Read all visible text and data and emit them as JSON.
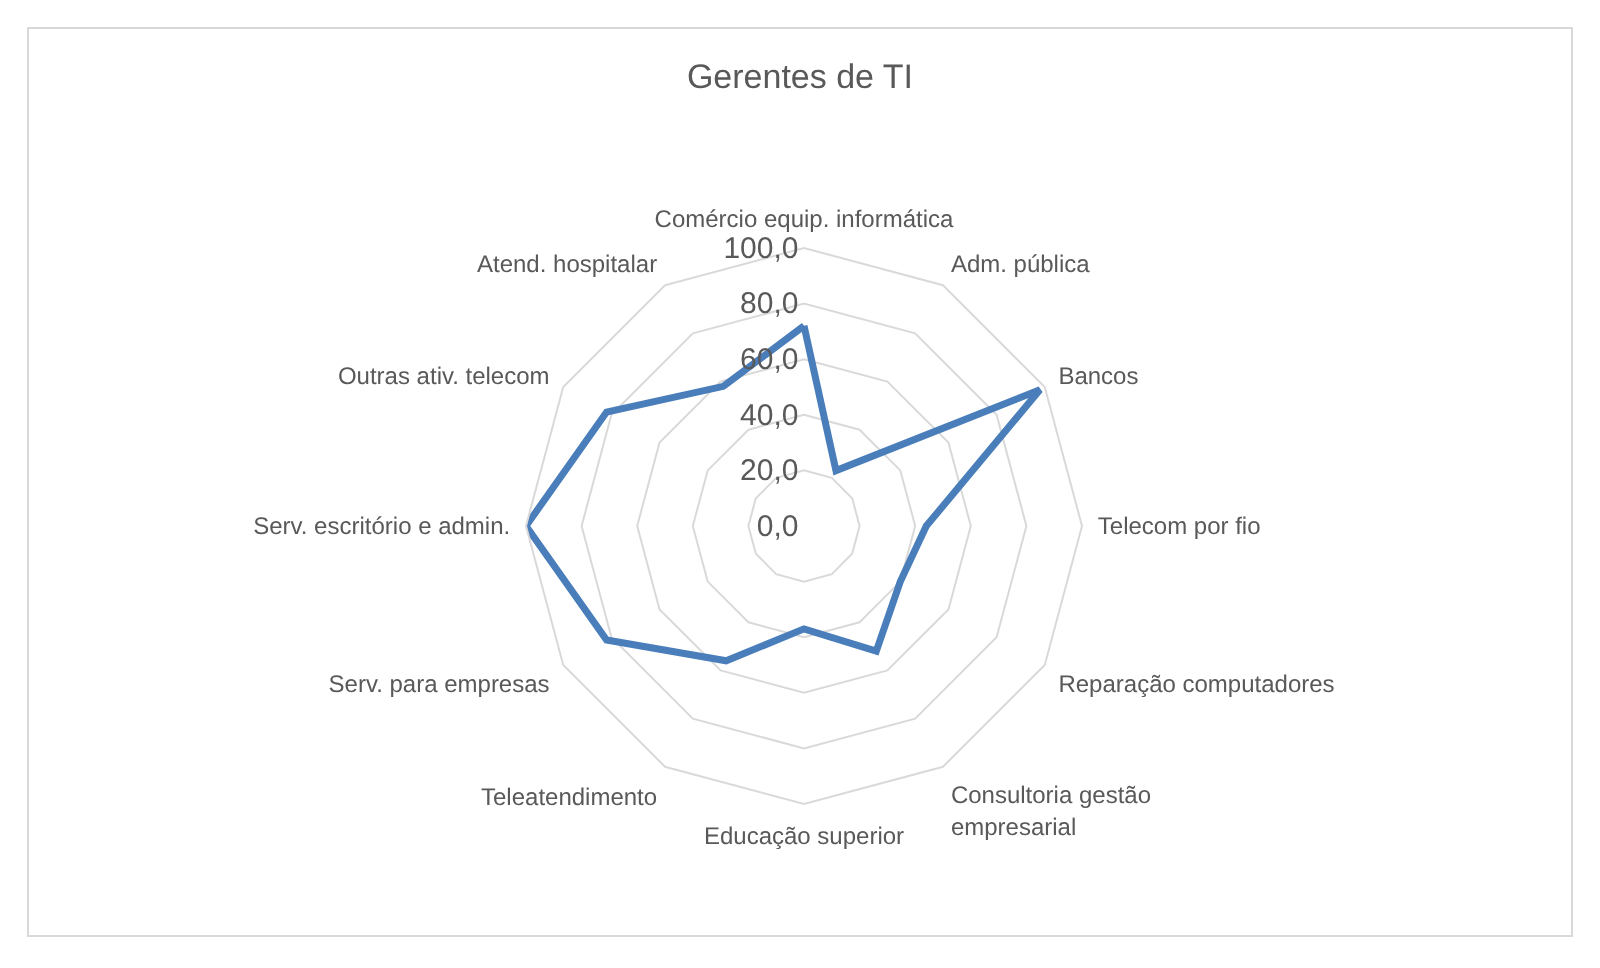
{
  "chart_data": {
    "type": "radar",
    "title": "Gerentes de TI",
    "categories": [
      "Comércio equip. informática",
      "Adm. pública",
      "Bancos",
      "Telecom por fio",
      "Reparação computadores",
      "Consultoria gestão\nempresarial",
      "Educação superior",
      "Teleatendimento",
      "Serv. para empresas",
      "Serv. escritório e admin.",
      "Outras ativ. telecom",
      "Atend. hospitalar"
    ],
    "series": [
      {
        "color": "#4a7ebb",
        "values": [
          72,
          23,
          98,
          44,
          40,
          52,
          37,
          56,
          82,
          100,
          82,
          58
        ]
      }
    ],
    "ylim": [
      0,
      100
    ],
    "yticks": [
      {
        "value": 0,
        "label": "0,0"
      },
      {
        "value": 20,
        "label": "20,0"
      },
      {
        "value": 40,
        "label": "40,0"
      },
      {
        "value": 60,
        "label": "60,0"
      },
      {
        "value": 80,
        "label": "80,0"
      },
      {
        "value": 100,
        "label": "100,0"
      }
    ],
    "grid": true,
    "marker": "none",
    "line_style": "solid"
  }
}
